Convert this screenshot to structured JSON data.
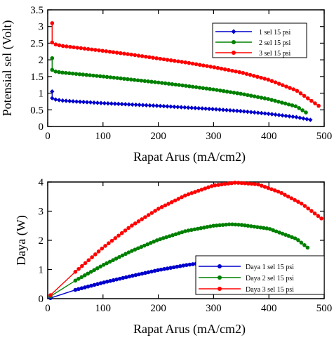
{
  "chart_data": [
    {
      "type": "line",
      "title": "",
      "xlabel": "Rapat Arus (mA/cm2)",
      "ylabel": "Potensial sel (Volt)",
      "xlim": [
        0,
        500
      ],
      "ylim": [
        0,
        3.5
      ],
      "xticks": [
        0,
        100,
        200,
        300,
        400,
        500
      ],
      "yticks": [
        0,
        0.5,
        1,
        1.5,
        2,
        2.5,
        3,
        3.5
      ],
      "ytick_labels": [
        "0",
        "0.5",
        "1",
        "1.5",
        "2",
        "2.5",
        "3",
        "3.5"
      ],
      "legend_position": "top-right",
      "series": [
        {
          "name": "1 sel 15 psi",
          "color": "#0000cc",
          "marker": "diamond",
          "x": [
            8,
            8,
            10,
            25,
            50,
            100,
            150,
            200,
            250,
            300,
            350,
            400,
            450,
            475
          ],
          "y": [
            1.05,
            0.85,
            0.82,
            0.78,
            0.75,
            0.7,
            0.66,
            0.62,
            0.57,
            0.52,
            0.46,
            0.38,
            0.28,
            0.2
          ]
        },
        {
          "name": "2 sel 15 psi",
          "color": "#008000",
          "marker": "circle",
          "x": [
            8,
            8,
            10,
            25,
            50,
            100,
            150,
            200,
            250,
            300,
            350,
            400,
            450,
            467
          ],
          "y": [
            2.05,
            1.7,
            1.66,
            1.62,
            1.58,
            1.5,
            1.41,
            1.32,
            1.22,
            1.11,
            0.98,
            0.82,
            0.6,
            0.42
          ]
        },
        {
          "name": "3 sel 15 psi",
          "color": "#ff0000",
          "marker": "circle",
          "x": [
            8,
            8,
            10,
            25,
            50,
            100,
            150,
            200,
            250,
            300,
            350,
            400,
            450,
            490
          ],
          "y": [
            3.1,
            2.52,
            2.48,
            2.42,
            2.37,
            2.27,
            2.16,
            2.04,
            1.92,
            1.78,
            1.62,
            1.4,
            1.08,
            0.62
          ]
        }
      ]
    },
    {
      "type": "line",
      "title": "",
      "xlabel": "Rapat Arus (mA/cm2)",
      "ylabel": "Daya (W)",
      "xlim": [
        0,
        500
      ],
      "ylim": [
        0,
        4
      ],
      "xticks": [
        0,
        100,
        200,
        300,
        400,
        500
      ],
      "yticks": [
        0,
        1,
        2,
        3,
        4
      ],
      "ytick_labels": [
        "0",
        "1",
        "2",
        "3",
        "4"
      ],
      "legend_position": "bottom-right",
      "series": [
        {
          "name": "Daya 1 sel 15 psi",
          "color": "#0000cc",
          "marker": "circle",
          "x": [
            5,
            50,
            100,
            150,
            200,
            250,
            300,
            350,
            400,
            450,
            475
          ],
          "y": [
            0.02,
            0.3,
            0.55,
            0.77,
            0.98,
            1.15,
            1.28,
            1.35,
            1.3,
            1.15,
            0.92
          ]
        },
        {
          "name": "Daya 2 sel 15 psi",
          "color": "#008000",
          "marker": "circle",
          "x": [
            5,
            50,
            100,
            150,
            200,
            250,
            300,
            330,
            350,
            400,
            450,
            470
          ],
          "y": [
            0.08,
            0.62,
            1.15,
            1.62,
            2.02,
            2.32,
            2.5,
            2.55,
            2.53,
            2.4,
            2.05,
            1.75
          ]
        },
        {
          "name": "Daya 3 sel 15 psi",
          "color": "#ff0000",
          "marker": "circle",
          "x": [
            5,
            50,
            100,
            150,
            200,
            250,
            300,
            340,
            380,
            420,
            460,
            495
          ],
          "y": [
            0.12,
            0.92,
            1.75,
            2.48,
            3.08,
            3.55,
            3.88,
            3.98,
            3.92,
            3.65,
            3.25,
            2.75
          ]
        }
      ]
    }
  ]
}
